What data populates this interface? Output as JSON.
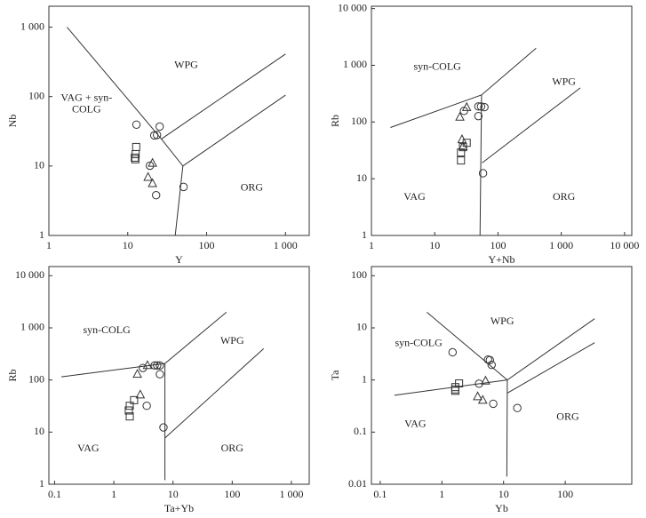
{
  "chart_data": [
    {
      "type": "scatter",
      "xlabel": "Y",
      "ylabel": "Nb",
      "xscale": "log",
      "yscale": "log",
      "xlim": [
        1,
        2000
      ],
      "ylim": [
        1,
        2000
      ],
      "xticks": [
        1,
        10,
        100,
        {
          "value": 1000,
          "label": "1 000"
        }
      ],
      "yticks": [
        1,
        10,
        100,
        {
          "value": 1000,
          "label": "1 000"
        }
      ],
      "boundaries": [
        {
          "x": [
            1.7,
            26.7,
            50,
            40
          ],
          "y": [
            1000,
            24.5,
            10,
            1
          ]
        },
        {
          "x": [
            26.7,
            1000
          ],
          "y": [
            24.5,
            410
          ]
        },
        {
          "x": [
            50,
            1000
          ],
          "y": [
            10,
            105
          ]
        }
      ],
      "annotations": [
        {
          "text": "WPG",
          "x": 55,
          "y": 279
        },
        {
          "text": [
            "VAG + syn-",
            "COLG"
          ],
          "x": 3,
          "y": 78
        },
        {
          "text": "ORG",
          "x": 374,
          "y": 4.8
        }
      ],
      "series": [
        {
          "marker": "circle",
          "color": "#333333",
          "x": [
            12.9,
            25.4,
            21.7,
            23.5,
            19.1,
            51,
            22.9
          ],
          "y": [
            39.4,
            37,
            27.6,
            28,
            10.1,
            5,
            3.8
          ]
        },
        {
          "marker": "square",
          "color": "#333333",
          "x": [
            12.8,
            12.6,
            12.3,
            12.5
          ],
          "y": [
            18.8,
            14.8,
            13.2,
            12.5
          ]
        },
        {
          "marker": "triangle",
          "color": "#333333",
          "x": [
            20.6,
            18.1,
            20.6
          ],
          "y": [
            11,
            6.9,
            5.6
          ]
        }
      ]
    },
    {
      "type": "scatter",
      "xlabel": "Y+Nb",
      "ylabel": "Rb",
      "xscale": "log",
      "yscale": "log",
      "xlim": [
        1,
        13000
      ],
      "ylim": [
        1,
        11000
      ],
      "xticks": [
        1,
        10,
        100,
        {
          "value": 1000,
          "label": "1 000"
        },
        {
          "value": 10000,
          "label": "10 000"
        }
      ],
      "yticks": [
        1,
        10,
        100,
        {
          "value": 1000,
          "label": "1 000"
        },
        {
          "value": 10000,
          "label": "10 000"
        }
      ],
      "boundaries": [
        {
          "x": [
            2,
            55,
            400
          ],
          "y": [
            80,
            300,
            2000
          ]
        },
        {
          "x": [
            55,
            52
          ],
          "y": [
            300,
            1
          ]
        },
        {
          "x": [
            56,
            2000
          ],
          "y": [
            19,
            400
          ]
        }
      ],
      "annotations": [
        {
          "text": "syn-COLG",
          "x": 11,
          "y": 920
        },
        {
          "text": "WPG",
          "x": 1100,
          "y": 500
        },
        {
          "text": "VAG",
          "x": 4.8,
          "y": 4.7
        },
        {
          "text": "ORG",
          "x": 1100,
          "y": 4.7
        }
      ],
      "series": [
        {
          "marker": "circle",
          "color": "#333333",
          "x": [
            49,
            54,
            61,
            29,
            49,
            58
          ],
          "y": [
            188,
            188,
            183,
            157,
            127,
            12.5
          ]
        },
        {
          "marker": "square",
          "color": "#333333",
          "x": [
            32,
            28,
            26,
            26
          ],
          "y": [
            43,
            36,
            29,
            21
          ]
        },
        {
          "marker": "triangle",
          "color": "#333333",
          "x": [
            32,
            25,
            27,
            28
          ],
          "y": [
            181,
            122,
            49,
            37
          ]
        }
      ]
    },
    {
      "type": "scatter",
      "xlabel": "Ta+Yb",
      "ylabel": "Rb",
      "xscale": "log",
      "yscale": "log",
      "xlim": [
        0.08,
        2000
      ],
      "ylim": [
        1,
        15000
      ],
      "xticks": [
        0.1,
        1,
        10,
        100,
        {
          "value": 1000,
          "label": "1 000"
        }
      ],
      "yticks": [
        1,
        10,
        100,
        {
          "value": 1000,
          "label": "1 000"
        },
        {
          "value": 10000,
          "label": "10 000"
        }
      ],
      "boundaries": [
        {
          "x": [
            0.13,
            7.3,
            80
          ],
          "y": [
            115,
            207,
            2000
          ]
        },
        {
          "x": [
            7.3,
            7.3
          ],
          "y": [
            207,
            1.2
          ]
        },
        {
          "x": [
            7.3,
            340
          ],
          "y": [
            7.7,
            400
          ]
        }
      ],
      "annotations": [
        {
          "text": "syn-COLG",
          "x": 0.76,
          "y": 880
        },
        {
          "text": "WPG",
          "x": 100,
          "y": 550
        },
        {
          "text": "VAG",
          "x": 0.37,
          "y": 4.8
        },
        {
          "text": "ORG",
          "x": 100,
          "y": 4.8
        }
      ],
      "series": [
        {
          "marker": "circle",
          "color": "#333333",
          "x": [
            4.9,
            5.4,
            6,
            3.1,
            6,
            3.6,
            6.9
          ],
          "y": [
            190,
            190,
            190,
            170,
            129,
            32,
            12.3
          ]
        },
        {
          "marker": "square",
          "color": "#333333",
          "x": [
            2.2,
            1.86,
            1.79,
            1.86
          ],
          "y": [
            41,
            32,
            26,
            20
          ]
        },
        {
          "marker": "triangle",
          "color": "#333333",
          "x": [
            3.7,
            2.5,
            2.8
          ],
          "y": [
            190,
            129,
            52
          ]
        }
      ]
    },
    {
      "type": "scatter",
      "xlabel": "Yb",
      "ylabel": "Ta",
      "xscale": "log",
      "yscale": "log",
      "xlim": [
        0.072,
        1200
      ],
      "ylim": [
        0.01,
        150
      ],
      "xticks": [
        0.1,
        1,
        10,
        100
      ],
      "yticks": [
        0.01,
        0.1,
        1,
        10,
        100
      ],
      "boundaries": [
        {
          "x": [
            0.17,
            11.5,
            300
          ],
          "y": [
            0.51,
            1,
            15
          ]
        },
        {
          "x": [
            0.57,
            11.5
          ],
          "y": [
            20,
            1
          ]
        },
        {
          "x": [
            11.5,
            11.3
          ],
          "y": [
            1,
            0.014
          ]
        },
        {
          "x": [
            11.5,
            300
          ],
          "y": [
            0.56,
            5.2
          ]
        }
      ],
      "annotations": [
        {
          "text": "WPG",
          "x": 9.5,
          "y": 13
        },
        {
          "text": "syn-COLG",
          "x": 0.42,
          "y": 5
        },
        {
          "text": "VAG",
          "x": 0.37,
          "y": 0.14
        },
        {
          "text": "ORG",
          "x": 110,
          "y": 0.19
        }
      ],
      "series": [
        {
          "marker": "circle",
          "color": "#333333",
          "x": [
            1.49,
            5.6,
            6,
            6.4,
            4,
            6.8,
            16.7
          ],
          "y": [
            3.4,
            2.46,
            2.4,
            1.95,
            0.85,
            0.35,
            0.29
          ]
        },
        {
          "marker": "square",
          "color": "#333333",
          "x": [
            1.9,
            1.65,
            1.65,
            1.65
          ],
          "y": [
            0.86,
            0.73,
            0.66,
            0.62
          ]
        },
        {
          "marker": "triangle",
          "color": "#333333",
          "x": [
            5.1,
            3.8,
            4.6
          ],
          "y": [
            0.96,
            0.48,
            0.41
          ]
        }
      ]
    }
  ]
}
